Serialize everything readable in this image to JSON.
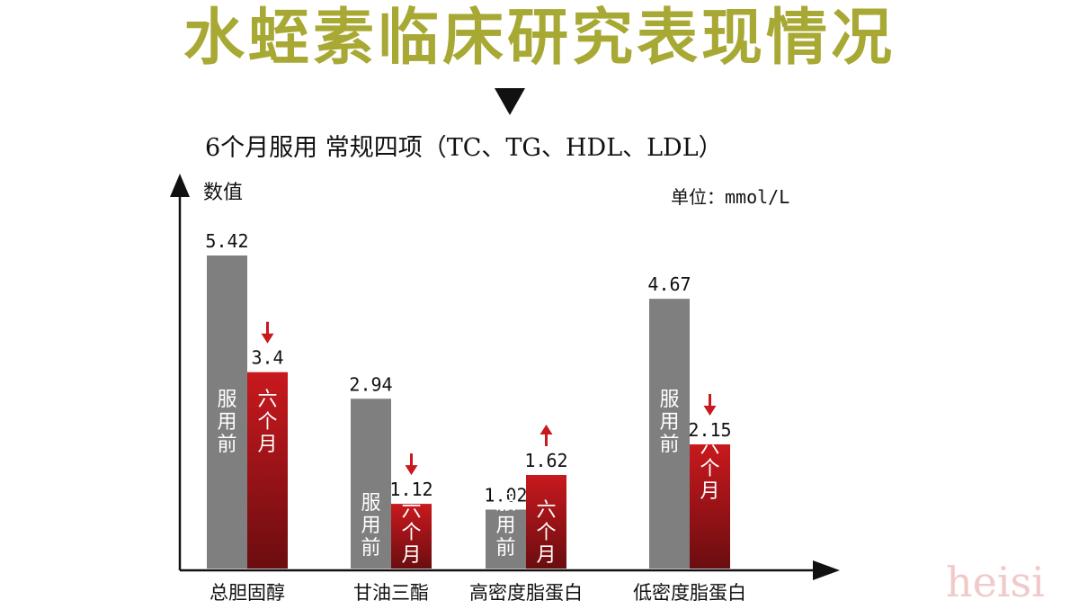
{
  "title": "水蛭素临床研究表现情况",
  "subtitle": "6个月服用 常规四项（TC、TG、HDL、LDL）",
  "watermark": "heisi",
  "colors": {
    "title": "#a8a834",
    "before": "#7f7f7f",
    "after": "#c8191e",
    "after_dark": "#6b0d10",
    "arrow": "#c8191e",
    "axis": "#111111",
    "watermark": "#f1c9c9"
  },
  "chart_data": {
    "type": "bar",
    "ylabel": "数值",
    "unit_label": "单位：mmol/L",
    "ylim": [
      0,
      6
    ],
    "categories": [
      "总胆固醇",
      "甘油三酯",
      "高密度脂蛋白",
      "低密度脂蛋白"
    ],
    "series": [
      {
        "name": "服用前",
        "values": [
          5.42,
          2.94,
          1.02,
          4.67
        ],
        "value_labels": [
          "5.42",
          "2.94",
          "1.02",
          "4.67"
        ]
      },
      {
        "name": "六个月",
        "values": [
          3.4,
          1.12,
          1.62,
          2.15
        ],
        "value_labels": [
          "3.4",
          "1.12",
          "1.62",
          "2.15"
        ]
      }
    ],
    "change_direction": [
      "down",
      "down",
      "up",
      "down"
    ]
  }
}
